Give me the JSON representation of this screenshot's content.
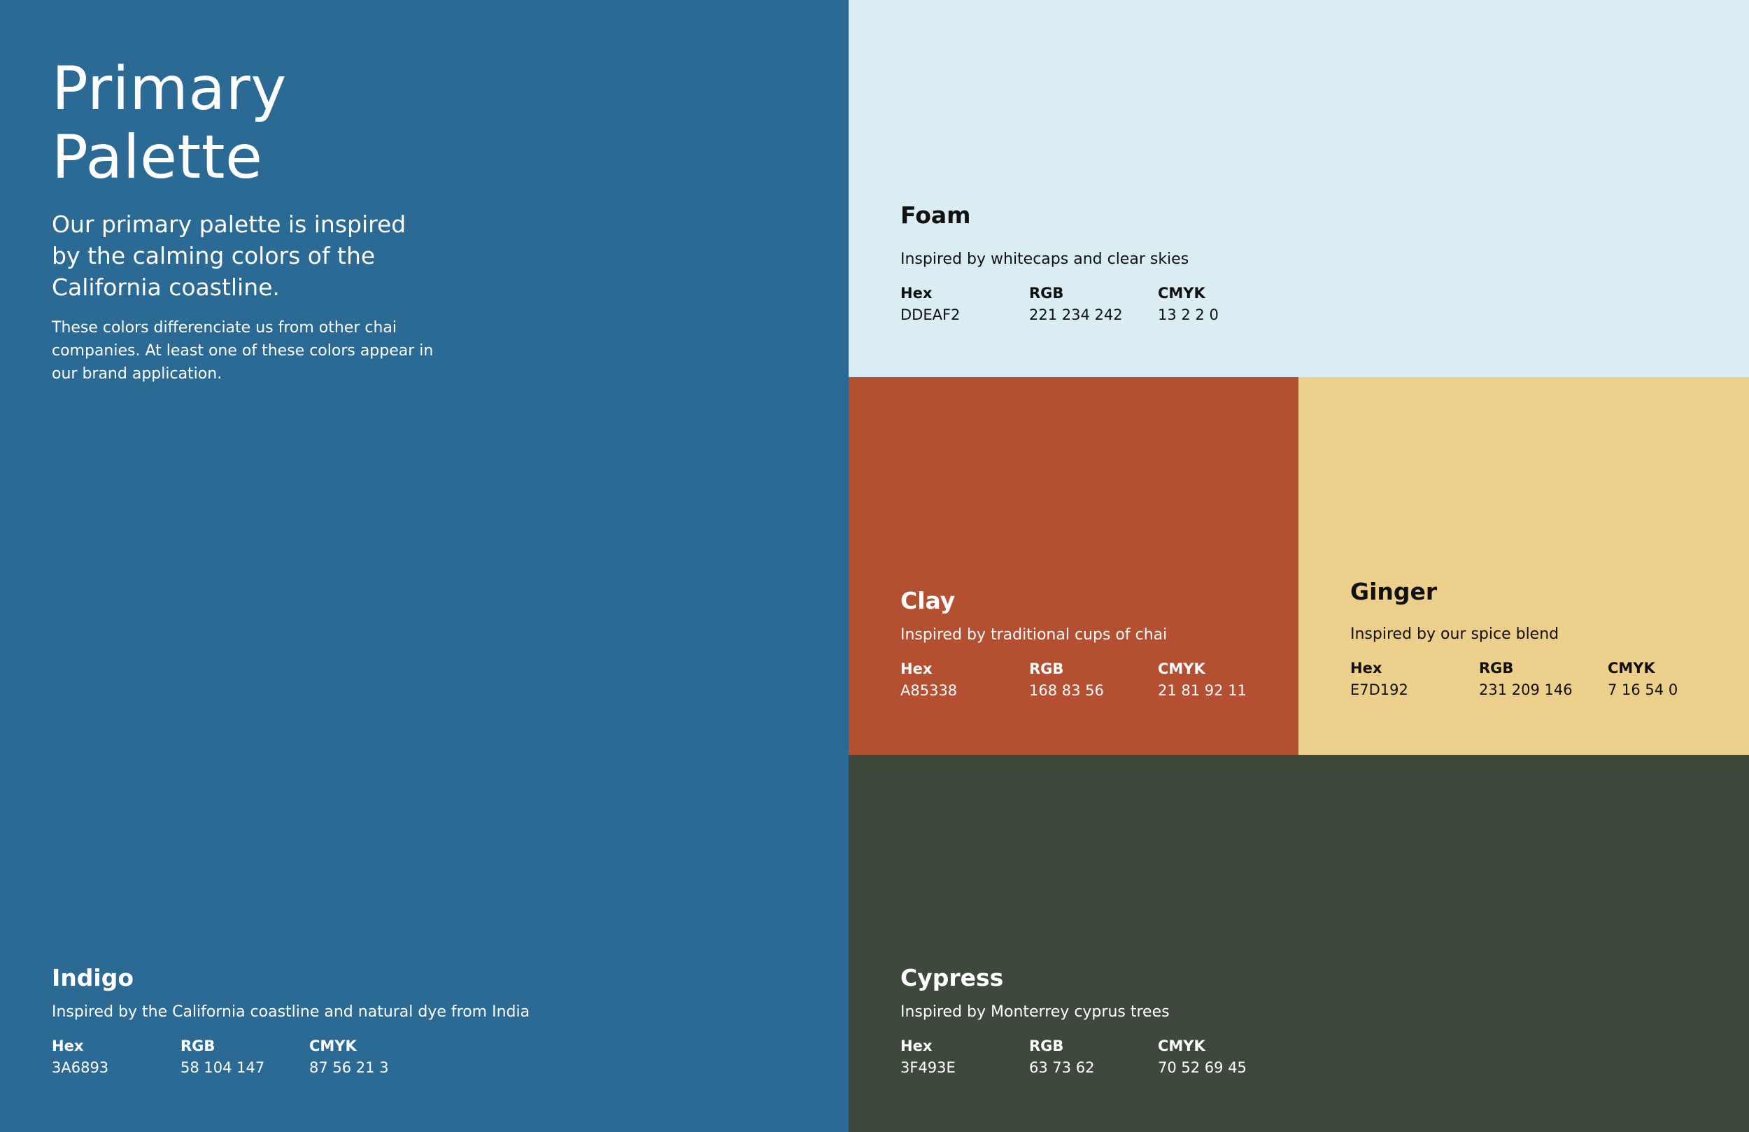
{
  "header": {
    "title": "Primary Palette",
    "lead": "Our primary palette is inspired by the calming colors of the California coastline.",
    "body": "These colors differenciate us from other chai companies. At least one of these colors appear in our brand application."
  },
  "labels": {
    "hex": "Hex",
    "rgb": "RGB",
    "cmyk": "CMYK"
  },
  "colors": {
    "indigo": {
      "name": "Indigo",
      "description": "Inspired by the California coastline and natural dye from India",
      "hex": "3A6893",
      "rgb": "58 104 147",
      "cmyk": "87 56 21 3",
      "swatch": "#2C6A96"
    },
    "foam": {
      "name": "Foam",
      "description": "Inspired by whitecaps and clear skies",
      "hex": "DDEAF2",
      "rgb": "221 234 242",
      "cmyk": "13 2 2 0",
      "swatch": "#DAEDF3"
    },
    "clay": {
      "name": "Clay",
      "description": "Inspired by traditional cups of chai",
      "hex": "A85338",
      "rgb": "168 83 56",
      "cmyk": "21 81 92 11",
      "swatch": "#B54F32"
    },
    "ginger": {
      "name": "Ginger",
      "description": "Inspired by our spice blend",
      "hex": "E7D192",
      "rgb": "231 209 146",
      "cmyk": "7 16 54 0",
      "swatch": "#EBCF8A"
    },
    "cypress": {
      "name": "Cypress",
      "description": "Inspired by Monterrey cyprus trees",
      "hex": "3F493E",
      "rgb": "63 73 62",
      "cmyk": "70 52 69 45",
      "swatch": "#3E483D"
    }
  }
}
